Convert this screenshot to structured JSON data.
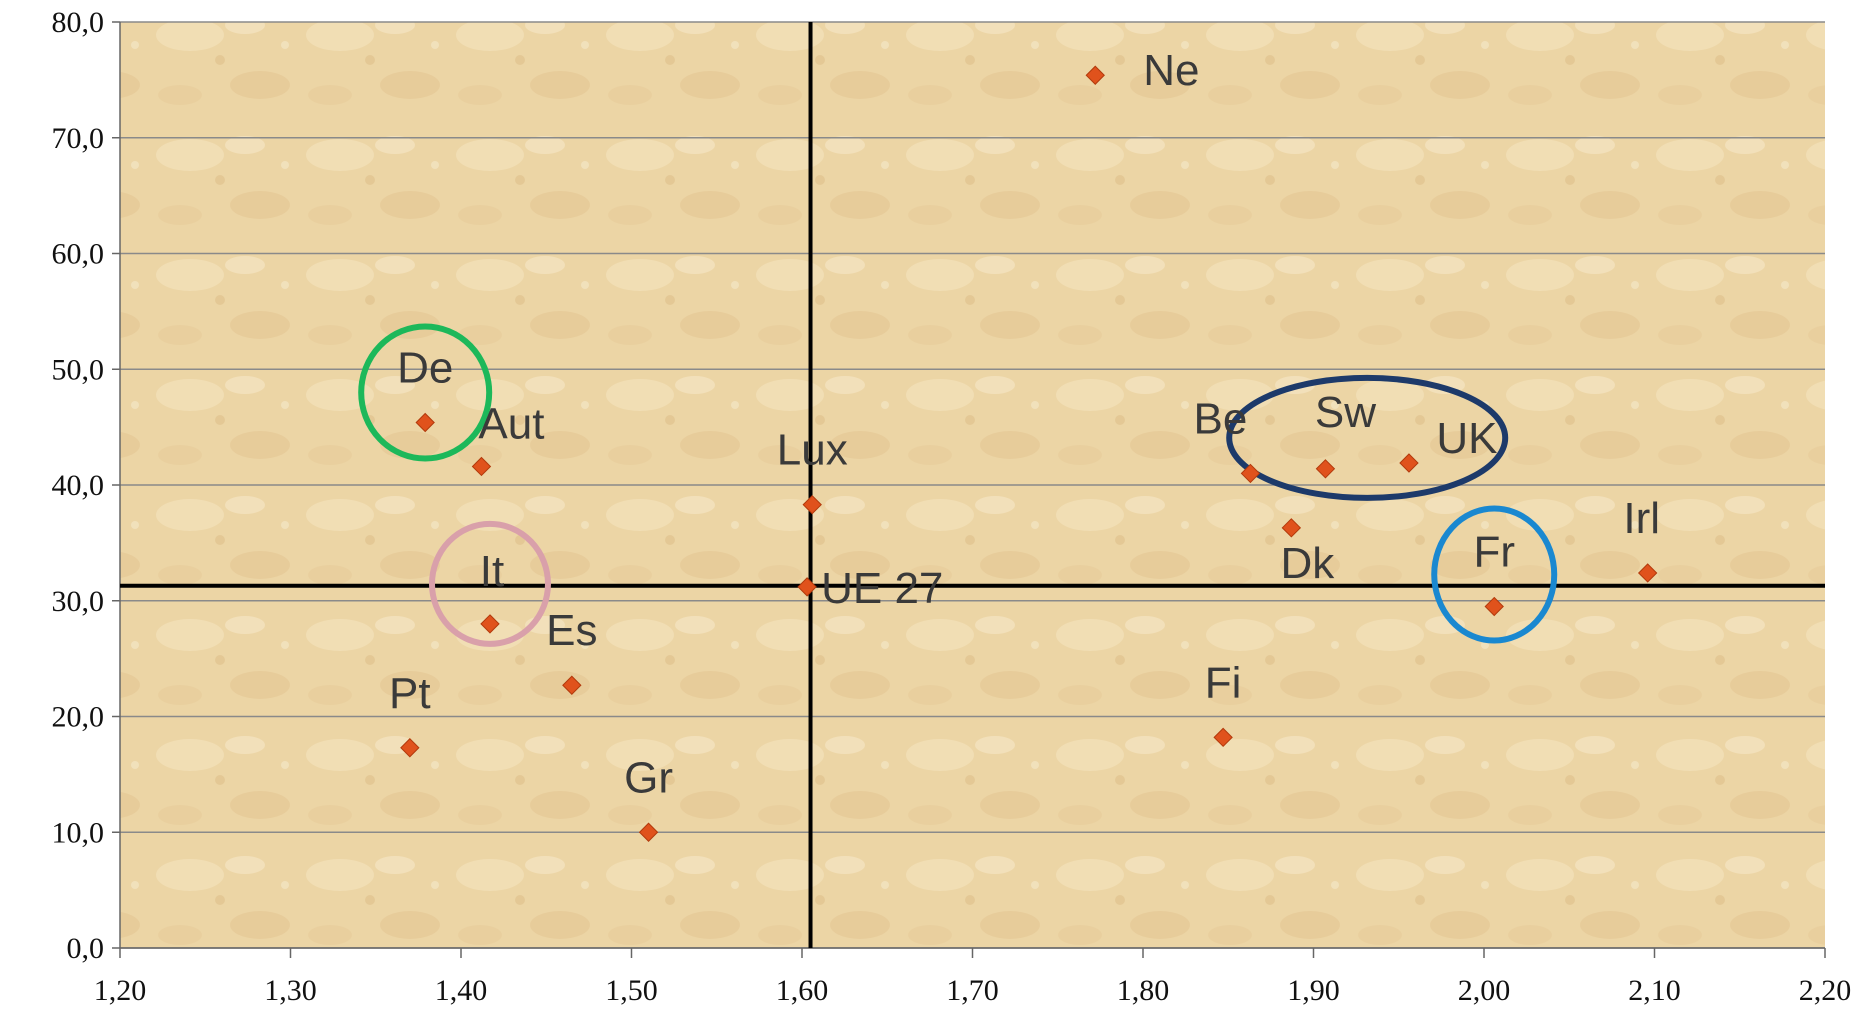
{
  "chart_data": {
    "type": "scatter",
    "xlim": [
      1.2,
      2.2
    ],
    "ylim": [
      0,
      80
    ],
    "x_ticks": [
      "1,20",
      "1,30",
      "1,40",
      "1,50",
      "1,60",
      "1,70",
      "1,80",
      "1,90",
      "2,00",
      "2,10",
      "2,20"
    ],
    "y_ticks": [
      "0,0",
      "10,0",
      "20,0",
      "30,0",
      "40,0",
      "50,0",
      "60,0",
      "70,0",
      "80,0"
    ],
    "grid": "horizontal",
    "reference_lines": {
      "x": 1.605,
      "y": 31.3
    },
    "marker_color": "#e0521c",
    "points": [
      {
        "label": "Ne",
        "x": 1.772,
        "y": 75.4
      },
      {
        "label": "De",
        "x": 1.379,
        "y": 45.4
      },
      {
        "label": "Aut",
        "x": 1.412,
        "y": 41.6
      },
      {
        "label": "Lux",
        "x": 1.606,
        "y": 38.3
      },
      {
        "label": "Be",
        "x": 1.863,
        "y": 41.0
      },
      {
        "label": "Sw",
        "x": 1.907,
        "y": 41.4
      },
      {
        "label": "UK",
        "x": 1.956,
        "y": 41.9
      },
      {
        "label": "Dk",
        "x": 1.887,
        "y": 36.3
      },
      {
        "label": "Irl",
        "x": 2.096,
        "y": 32.4
      },
      {
        "label": "Fr",
        "x": 2.006,
        "y": 29.5
      },
      {
        "label": "It",
        "x": 1.417,
        "y": 28.0
      },
      {
        "label": "UE 27",
        "x": 1.603,
        "y": 31.2
      },
      {
        "label": "Es",
        "x": 1.465,
        "y": 22.7
      },
      {
        "label": "Pt",
        "x": 1.37,
        "y": 17.3
      },
      {
        "label": "Fi",
        "x": 1.847,
        "y": 18.2
      },
      {
        "label": "Gr",
        "x": 1.51,
        "y": 10.0
      }
    ],
    "highlights": [
      {
        "around": "De",
        "color": "#1db85a"
      },
      {
        "around": "It",
        "color": "#d9a0aa"
      },
      {
        "around": [
          "Sw",
          "UK"
        ],
        "color": "#1d3a6a"
      },
      {
        "around": "Fr",
        "color": "#1a88d0"
      }
    ]
  }
}
